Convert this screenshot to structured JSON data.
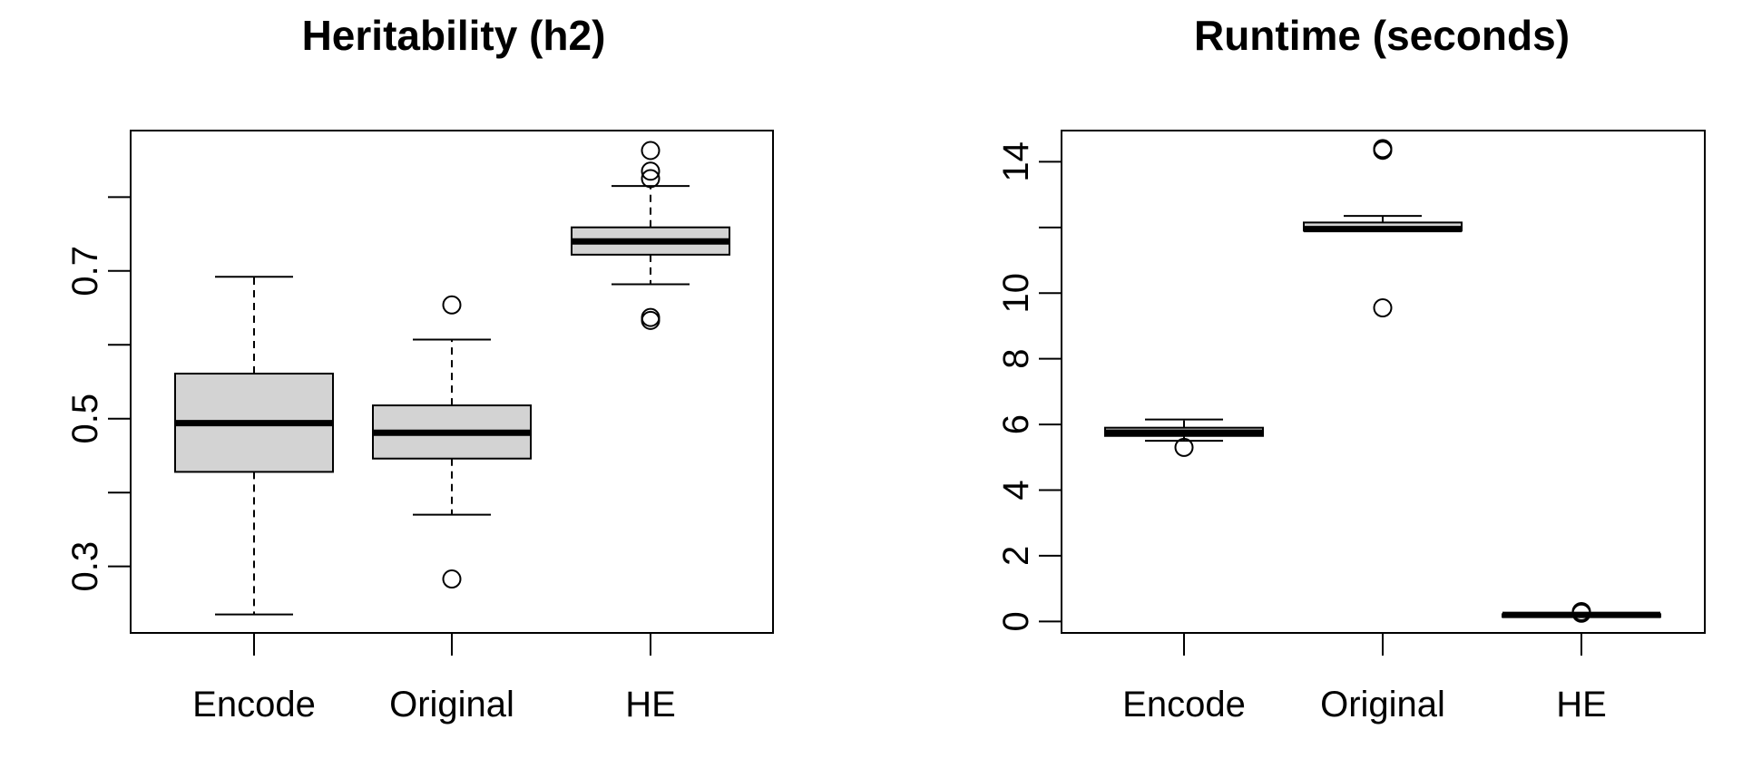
{
  "chart_data": [
    {
      "type": "box",
      "title": "Heritability (h2)",
      "xlabel": "",
      "ylabel": "",
      "categories": [
        "Encode",
        "Original",
        "HE"
      ],
      "yticks": [
        0.3,
        0.5,
        0.7
      ],
      "yticks_minor": [
        0.4,
        0.6,
        0.8
      ],
      "ylim": [
        0.21,
        0.89
      ],
      "box_fill": "#d3d3d3",
      "grid": false,
      "boxes": [
        {
          "name": "Encode",
          "whisker_low": 0.235,
          "q1": 0.428,
          "median": 0.494,
          "q3": 0.561,
          "whisker_high": 0.692,
          "outliers": []
        },
        {
          "name": "Original",
          "whisker_low": 0.37,
          "q1": 0.446,
          "median": 0.481,
          "q3": 0.518,
          "whisker_high": 0.607,
          "outliers": [
            0.654,
            0.283
          ]
        },
        {
          "name": "HE",
          "whisker_low": 0.682,
          "q1": 0.722,
          "median": 0.74,
          "q3": 0.759,
          "whisker_high": 0.815,
          "outliers": [
            0.863,
            0.835,
            0.825,
            0.637,
            0.633
          ]
        }
      ]
    },
    {
      "type": "box",
      "title": "Runtime (seconds)",
      "xlabel": "",
      "ylabel": "",
      "categories": [
        "Encode",
        "Original",
        "HE"
      ],
      "yticks": [
        0,
        2,
        4,
        6,
        8,
        10,
        12,
        14
      ],
      "ytick_labels": [
        "0",
        "2",
        "4",
        "6",
        "8",
        "10",
        "",
        "14"
      ],
      "ylim": [
        -0.35,
        14.95
      ],
      "box_fill": "#d3d3d3",
      "grid": false,
      "boxes": [
        {
          "name": "Encode",
          "whisker_low": 5.5,
          "q1": 5.65,
          "median": 5.75,
          "q3": 5.9,
          "whisker_high": 6.15,
          "outliers": [
            5.3
          ]
        },
        {
          "name": "Original",
          "whisker_low": 11.9,
          "q1": 11.9,
          "median": 11.95,
          "q3": 12.15,
          "whisker_high": 12.35,
          "outliers": [
            14.4,
            14.35,
            9.55
          ]
        },
        {
          "name": "HE",
          "whisker_low": 0.15,
          "q1": 0.15,
          "median": 0.2,
          "q3": 0.22,
          "whisker_high": 0.25,
          "outliers": [
            0.25,
            0.3
          ]
        }
      ]
    }
  ]
}
